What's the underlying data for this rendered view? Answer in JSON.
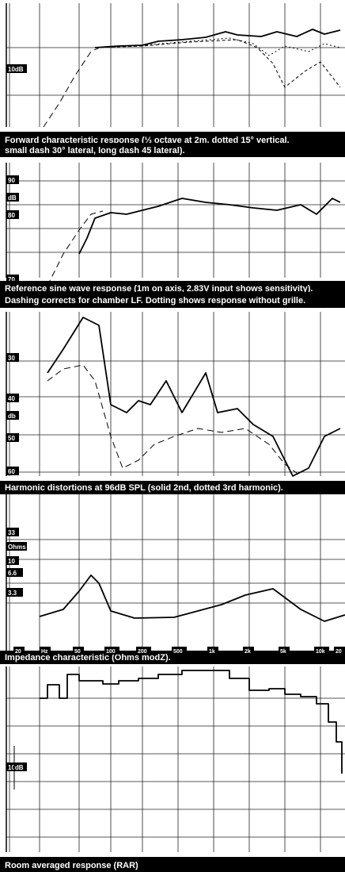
{
  "chart_data": [
    {
      "type": "line",
      "title": "",
      "caption_lines": [
        "Forward characteristic response (⅓ octave at 2m, dotted 15° vertical,",
        "small dash 30° lateral, long dash 45 lateral)."
      ],
      "y_labels": [
        "10dB"
      ],
      "grid": true,
      "series": [
        {
          "style": "solid",
          "values": [
            [
              120,
              60
            ],
            [
              150,
              58
            ],
            [
              180,
              57
            ],
            [
              200,
              52
            ],
            [
              230,
              50
            ],
            [
              260,
              47
            ],
            [
              285,
              40
            ],
            [
              300,
              44
            ],
            [
              330,
              46
            ],
            [
              350,
              40
            ],
            [
              375,
              46
            ],
            [
              395,
              37
            ],
            [
              410,
              43
            ],
            [
              430,
              38
            ]
          ]
        },
        {
          "style": "dotted",
          "values": [
            [
              120,
              60
            ],
            [
              180,
              57
            ],
            [
              240,
              52
            ],
            [
              290,
              48
            ],
            [
              320,
              55
            ],
            [
              340,
              70
            ],
            [
              360,
              58
            ],
            [
              390,
              65
            ],
            [
              410,
              55
            ],
            [
              430,
              60
            ]
          ]
        },
        {
          "style": "small-dash",
          "values": [
            [
              120,
              60
            ],
            [
              180,
              58
            ],
            [
              240,
              53
            ],
            [
              300,
              50
            ],
            [
              325,
              60
            ],
            [
              345,
              80
            ],
            [
              360,
              110
            ],
            [
              385,
              90
            ],
            [
              405,
              78
            ],
            [
              430,
              110
            ]
          ]
        },
        {
          "style": "long-dash",
          "values": [
            [
              55,
              160
            ],
            [
              75,
              130
            ],
            [
              95,
              95
            ],
            [
              115,
              65
            ],
            [
              130,
              58
            ]
          ]
        }
      ]
    },
    {
      "type": "line",
      "title": "",
      "caption_lines": [
        "Reference sine wave response (1m on axis, 2.83V input shows sensitivity).",
        "Dashing corrects for chamber LF. Dotting shows response without grille."
      ],
      "y_labels": [
        "90",
        "dB",
        "80",
        "70"
      ],
      "grid": true,
      "series": [
        {
          "style": "solid",
          "values": [
            [
              100,
              320
            ],
            [
              110,
              300
            ],
            [
              120,
              275
            ],
            [
              140,
              268
            ],
            [
              160,
              270
            ],
            [
              180,
              265
            ],
            [
              200,
              260
            ],
            [
              230,
              250
            ],
            [
              260,
              255
            ],
            [
              290,
              258
            ],
            [
              320,
              262
            ],
            [
              350,
              265
            ],
            [
              380,
              258
            ],
            [
              400,
              270
            ],
            [
              420,
              250
            ],
            [
              430,
              255
            ]
          ]
        },
        {
          "style": "dashed",
          "values": [
            [
              60,
              360
            ],
            [
              80,
              320
            ],
            [
              100,
              290
            ],
            [
              115,
              270
            ],
            [
              130,
              266
            ]
          ]
        }
      ]
    },
    {
      "type": "line",
      "title": "",
      "caption": "Harmonic distortions at 96dB SPL (solid 2nd, dotted 3rd harmonic).",
      "y_labels": [
        "30",
        "40",
        "db",
        "50",
        "60"
      ],
      "grid": true,
      "series": [
        {
          "name": "2nd harmonic",
          "style": "solid",
          "values": [
            [
              60,
              470
            ],
            [
              80,
              440
            ],
            [
              105,
              400
            ],
            [
              125,
              410
            ],
            [
              140,
              510
            ],
            [
              160,
              520
            ],
            [
              175,
              505
            ],
            [
              190,
              510
            ],
            [
              210,
              480
            ],
            [
              230,
              520
            ],
            [
              260,
              470
            ],
            [
              275,
              520
            ],
            [
              300,
              515
            ],
            [
              320,
              535
            ],
            [
              345,
              550
            ],
            [
              370,
              600
            ],
            [
              390,
              590
            ],
            [
              410,
              550
            ],
            [
              430,
              540
            ]
          ]
        },
        {
          "name": "3rd harmonic",
          "style": "dashed",
          "values": [
            [
              60,
              480
            ],
            [
              80,
              465
            ],
            [
              105,
              460
            ],
            [
              120,
              480
            ],
            [
              140,
              550
            ],
            [
              155,
              590
            ],
            [
              175,
              580
            ],
            [
              195,
              560
            ],
            [
              220,
              550
            ],
            [
              250,
              540
            ],
            [
              280,
              545
            ],
            [
              310,
              540
            ],
            [
              340,
              560
            ],
            [
              360,
              585
            ],
            [
              380,
              600
            ]
          ]
        }
      ]
    },
    {
      "type": "line",
      "title": "",
      "caption": "Impedance characteristic (Ohms modZ).",
      "y_labels": [
        "33",
        "Ohms",
        "10",
        "6.6",
        "3.3"
      ],
      "x_labels": [
        "20",
        "Hz",
        "50",
        "100",
        "200",
        "500",
        "1k",
        "2k",
        "5k",
        "10k",
        "20"
      ],
      "grid": true,
      "series": [
        {
          "style": "solid",
          "values": [
            [
              50,
              777
            ],
            [
              80,
              768
            ],
            [
              100,
              745
            ],
            [
              115,
              725
            ],
            [
              125,
              735
            ],
            [
              140,
              770
            ],
            [
              170,
              779
            ],
            [
              220,
              778
            ],
            [
              280,
              762
            ],
            [
              310,
              750
            ],
            [
              345,
              742
            ],
            [
              380,
              768
            ],
            [
              410,
              783
            ],
            [
              436,
              775
            ]
          ]
        }
      ]
    },
    {
      "type": "line",
      "title": "",
      "caption": "Room averaged response (RAR)",
      "y_labels": [
        "10dB"
      ],
      "grid": true,
      "series": [
        {
          "style": "step",
          "values": [
            [
              50,
              880
            ],
            [
              60,
              863
            ],
            [
              75,
              880
            ],
            [
              85,
              850
            ],
            [
              100,
              858
            ],
            [
              130,
              862
            ],
            [
              150,
              858
            ],
            [
              175,
              855
            ],
            [
              200,
              850
            ],
            [
              230,
              845
            ],
            [
              260,
              845
            ],
            [
              290,
              855
            ],
            [
              315,
              870
            ],
            [
              340,
              868
            ],
            [
              360,
              875
            ],
            [
              380,
              878
            ],
            [
              400,
              887
            ],
            [
              415,
              910
            ],
            [
              425,
              935
            ],
            [
              432,
              975
            ]
          ]
        }
      ]
    }
  ]
}
